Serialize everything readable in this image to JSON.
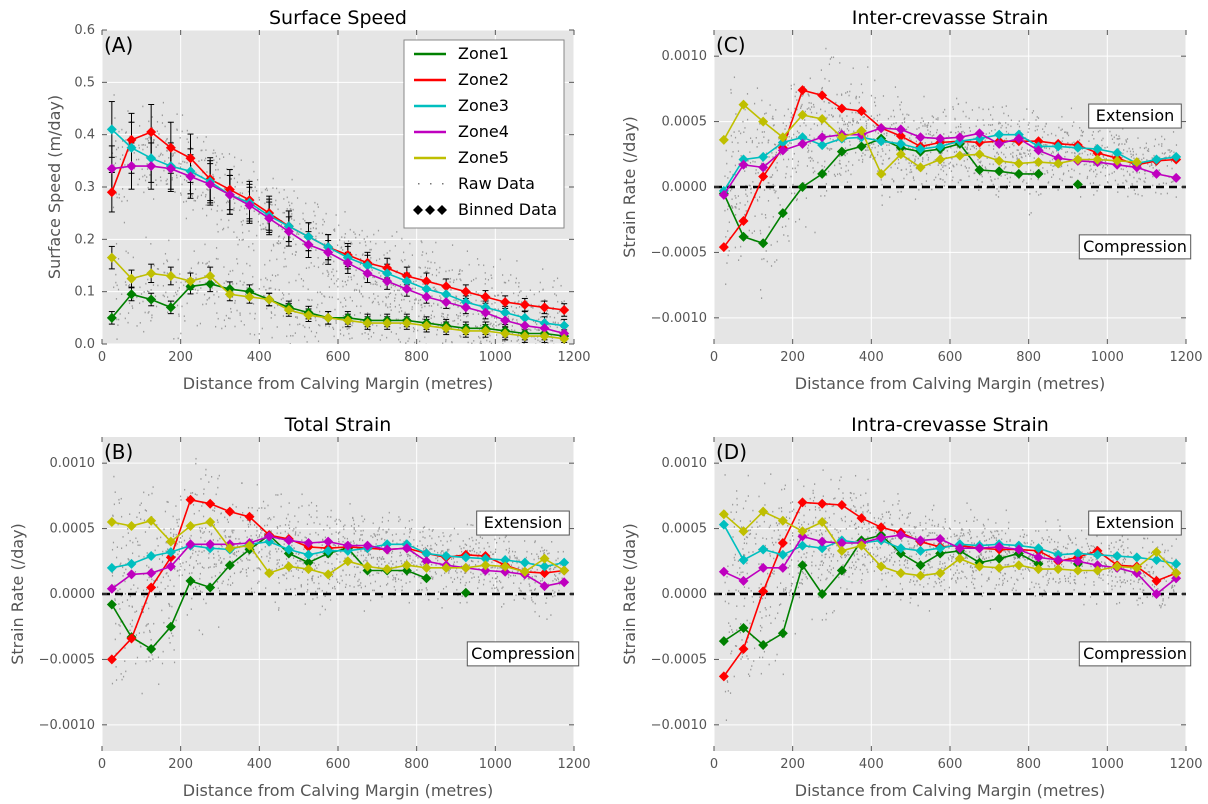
{
  "chart_data": [
    {
      "id": "A",
      "type": "line",
      "title": "Surface Speed",
      "panel_label": "(A)",
      "xlabel": "Distance from Calving Margin (metres)",
      "ylabel": "Surface Speed (m/day)",
      "xlim": [
        0,
        1200
      ],
      "ylim": [
        0.0,
        0.6
      ],
      "xticks": [
        0,
        200,
        400,
        600,
        800,
        1000,
        1200
      ],
      "yticks": [
        0.0,
        0.1,
        0.2,
        0.3,
        0.4,
        0.5,
        0.6
      ],
      "yticklabels": [
        "0.0",
        "0.1",
        "0.2",
        "0.3",
        "0.4",
        "0.5",
        "0.6"
      ],
      "grid": true,
      "legend": {
        "placement": "top-right",
        "entries": [
          "Zone1",
          "Zone2",
          "Zone3",
          "Zone4",
          "Zone5",
          "Raw Data",
          "Binned Data"
        ]
      },
      "x": [
        25,
        75,
        125,
        175,
        225,
        275,
        325,
        375,
        425,
        475,
        525,
        575,
        625,
        675,
        725,
        775,
        825,
        875,
        925,
        975,
        1025,
        1075,
        1125,
        1175
      ],
      "series": [
        {
          "name": "Zone1",
          "color": "#008000",
          "values": [
            0.05,
            0.095,
            0.085,
            0.07,
            0.11,
            0.115,
            0.105,
            0.1,
            0.085,
            0.07,
            0.06,
            0.05,
            0.05,
            0.045,
            0.045,
            0.045,
            0.04,
            0.035,
            0.03,
            0.03,
            0.025,
            0.02,
            0.02,
            0.015
          ]
        },
        {
          "name": "Zone2",
          "color": "#ff0000",
          "values": [
            0.29,
            0.39,
            0.405,
            0.375,
            0.355,
            0.315,
            0.295,
            0.275,
            0.25,
            0.225,
            0.205,
            0.185,
            0.17,
            0.155,
            0.145,
            0.13,
            0.12,
            0.11,
            0.1,
            0.09,
            0.08,
            0.075,
            0.07,
            0.065
          ]
        },
        {
          "name": "Zone3",
          "color": "#00bfbf",
          "values": [
            0.41,
            0.375,
            0.355,
            0.34,
            0.33,
            0.31,
            0.285,
            0.27,
            0.245,
            0.225,
            0.205,
            0.185,
            0.165,
            0.15,
            0.135,
            0.12,
            0.105,
            0.095,
            0.08,
            0.07,
            0.06,
            0.05,
            0.04,
            0.035
          ]
        },
        {
          "name": "Zone4",
          "color": "#bf00bf",
          "values": [
            0.335,
            0.34,
            0.34,
            0.335,
            0.32,
            0.305,
            0.285,
            0.265,
            0.24,
            0.215,
            0.19,
            0.175,
            0.155,
            0.135,
            0.12,
            0.105,
            0.09,
            0.08,
            0.07,
            0.06,
            0.045,
            0.035,
            0.03,
            0.02
          ]
        },
        {
          "name": "Zone5",
          "color": "#bfbf00",
          "values": [
            0.165,
            0.125,
            0.135,
            0.13,
            0.12,
            0.13,
            0.095,
            0.09,
            0.085,
            0.065,
            0.055,
            0.05,
            0.045,
            0.04,
            0.04,
            0.04,
            0.035,
            0.03,
            0.025,
            0.025,
            0.02,
            0.015,
            0.015,
            0.01
          ]
        }
      ]
    },
    {
      "id": "C",
      "type": "line",
      "title": "Inter-crevasse Strain",
      "panel_label": "(C)",
      "xlabel": "Distance from Calving Margin (metres)",
      "ylabel": "Strain Rate (/day)",
      "xlim": [
        0,
        1200
      ],
      "ylim": [
        -0.0012,
        0.0012
      ],
      "xticks": [
        0,
        200,
        400,
        600,
        800,
        1000,
        1200
      ],
      "yticks": [
        -0.001,
        -0.0005,
        0.0,
        0.0005,
        0.001
      ],
      "yticklabels": [
        "−0.0010",
        "−0.0005",
        "0.0000",
        "0.0005",
        "0.0010"
      ],
      "grid": true,
      "annotations": [
        "Extension",
        "Compression"
      ],
      "x": [
        25,
        75,
        125,
        175,
        225,
        275,
        325,
        375,
        425,
        475,
        525,
        575,
        625,
        675,
        725,
        775,
        825,
        875,
        925,
        975,
        1025,
        1075,
        1125,
        1175
      ],
      "series": [
        {
          "name": "Zone1",
          "color": "#008000",
          "values": [
            -5e-05,
            -0.00038,
            -0.00043,
            -0.0002,
            0.0,
            0.0001,
            0.00027,
            0.00031,
            0.00037,
            0.0003,
            0.00027,
            0.00029,
            0.00033,
            0.00013,
            0.00012,
            0.0001,
            0.0001,
            null,
            2e-05,
            null,
            null,
            null,
            null,
            null
          ]
        },
        {
          "name": "Zone2",
          "color": "#ff0000",
          "values": [
            -0.00046,
            -0.00026,
            8e-05,
            0.0003,
            0.00074,
            0.0007,
            0.0006,
            0.00058,
            0.00045,
            0.00039,
            0.00031,
            0.00034,
            0.00035,
            0.00034,
            0.00035,
            0.00035,
            0.00035,
            0.00033,
            0.00032,
            0.00026,
            0.00022,
            0.00017,
            0.0002,
            0.00021
          ]
        },
        {
          "name": "Zone3",
          "color": "#00bfbf",
          "values": [
            -3e-05,
            0.00021,
            0.00023,
            0.00034,
            0.00038,
            0.00032,
            0.00037,
            0.00038,
            0.00035,
            0.00033,
            0.00029,
            0.00031,
            0.00035,
            0.00037,
            0.0004,
            0.0004,
            0.00031,
            0.00031,
            0.0003,
            0.00029,
            0.00026,
            0.00018,
            0.00021,
            0.00023
          ]
        },
        {
          "name": "Zone4",
          "color": "#bf00bf",
          "values": [
            -6e-05,
            0.00017,
            0.00015,
            0.00028,
            0.00033,
            0.00038,
            0.0004,
            0.0004,
            0.00045,
            0.00044,
            0.00038,
            0.00037,
            0.00038,
            0.00041,
            0.00033,
            0.00037,
            0.00028,
            0.00022,
            0.0002,
            0.00019,
            0.00017,
            0.00015,
            0.0001,
            7e-05
          ]
        },
        {
          "name": "Zone5",
          "color": "#bfbf00",
          "values": [
            0.00036,
            0.00063,
            0.0005,
            0.00038,
            0.00055,
            0.00052,
            0.00038,
            0.00043,
            0.0001,
            0.00025,
            0.00015,
            0.00021,
            0.00024,
            0.00025,
            0.0002,
            0.00018,
            0.00019,
            0.00018,
            0.00021,
            0.00021,
            0.0002,
            0.00019,
            null,
            null
          ]
        }
      ]
    },
    {
      "id": "B",
      "type": "line",
      "title": "Total Strain",
      "panel_label": "(B)",
      "xlabel": "Distance from Calving Margin (metres)",
      "ylabel": "Strain Rate (/day)",
      "xlim": [
        0,
        1200
      ],
      "ylim": [
        -0.0012,
        0.0012
      ],
      "xticks": [
        0,
        200,
        400,
        600,
        800,
        1000,
        1200
      ],
      "yticks": [
        -0.001,
        -0.0005,
        0.0,
        0.0005,
        0.001
      ],
      "yticklabels": [
        "−0.0010",
        "−0.0005",
        "0.0000",
        "0.0005",
        "0.0010"
      ],
      "grid": true,
      "annotations": [
        "Extension",
        "Compression"
      ],
      "x": [
        25,
        75,
        125,
        175,
        225,
        275,
        325,
        375,
        425,
        475,
        525,
        575,
        625,
        675,
        725,
        775,
        825,
        875,
        925,
        975,
        1025,
        1075,
        1125,
        1175
      ],
      "series": [
        {
          "name": "Zone1",
          "color": "#008000",
          "values": [
            -8e-05,
            -0.00033,
            -0.00042,
            -0.00025,
            0.0001,
            5e-05,
            0.00022,
            0.00034,
            0.00045,
            0.00031,
            0.00024,
            0.00031,
            0.00035,
            0.00018,
            0.00018,
            0.00018,
            0.00012,
            null,
            1e-05,
            null,
            null,
            null,
            null,
            null
          ]
        },
        {
          "name": "Zone2",
          "color": "#ff0000",
          "values": [
            -0.0005,
            -0.00034,
            5e-05,
            0.00028,
            0.00072,
            0.00069,
            0.00063,
            0.00059,
            0.00045,
            0.00042,
            0.00036,
            0.00035,
            0.00036,
            0.00035,
            0.00034,
            0.00035,
            0.00031,
            0.00028,
            0.0003,
            0.00029,
            0.00022,
            0.00017,
            0.00016,
            0.00018
          ]
        },
        {
          "name": "Zone3",
          "color": "#00bfbf",
          "values": [
            0.0002,
            0.00023,
            0.00029,
            0.00032,
            0.00037,
            0.00035,
            0.00034,
            0.00038,
            0.0004,
            0.00034,
            0.0003,
            0.00033,
            0.00033,
            0.00035,
            0.00038,
            0.00038,
            0.00031,
            0.00029,
            0.00028,
            0.00027,
            0.00026,
            0.00024,
            0.00021,
            0.00024
          ]
        },
        {
          "name": "Zone4",
          "color": "#bf00bf",
          "values": [
            4e-05,
            0.00015,
            0.00016,
            0.00021,
            0.00038,
            0.00038,
            0.00038,
            0.00039,
            0.00044,
            0.00041,
            0.00039,
            0.0004,
            0.00037,
            0.00037,
            0.00034,
            0.00035,
            0.00025,
            0.00022,
            0.0002,
            0.00018,
            0.00017,
            0.00015,
            6e-05,
            9e-05
          ]
        },
        {
          "name": "Zone5",
          "color": "#bfbf00",
          "values": [
            0.00055,
            0.00052,
            0.00056,
            0.0004,
            0.00052,
            0.00055,
            0.00035,
            0.00037,
            0.00016,
            0.00021,
            0.00019,
            0.00015,
            0.00025,
            0.00021,
            0.00019,
            0.00022,
            0.0002,
            0.0002,
            0.0002,
            0.00022,
            0.00021,
            0.00017,
            0.00027,
            0.00018
          ]
        }
      ]
    },
    {
      "id": "D",
      "type": "line",
      "title": "Intra-crevasse Strain",
      "panel_label": "(D)",
      "xlabel": "Distance from Calving Margin (metres)",
      "ylabel": "Strain Rate (/day)",
      "xlim": [
        0,
        1200
      ],
      "ylim": [
        -0.0012,
        0.0012
      ],
      "xticks": [
        0,
        200,
        400,
        600,
        800,
        1000,
        1200
      ],
      "yticks": [
        -0.001,
        -0.0005,
        0.0,
        0.0005,
        0.001
      ],
      "yticklabels": [
        "−0.0010",
        "−0.0005",
        "0.0000",
        "0.0005",
        "0.0010"
      ],
      "grid": true,
      "annotations": [
        "Extension",
        "Compression"
      ],
      "x": [
        25,
        75,
        125,
        175,
        225,
        275,
        325,
        375,
        425,
        475,
        525,
        575,
        625,
        675,
        725,
        775,
        825,
        875,
        925,
        975,
        1025,
        1075,
        1125,
        1175
      ],
      "series": [
        {
          "name": "Zone1",
          "color": "#008000",
          "values": [
            -0.00036,
            -0.00026,
            -0.00039,
            -0.0003,
            0.00022,
            0.0,
            0.00018,
            0.00041,
            0.00045,
            0.00031,
            0.00022,
            0.00031,
            0.00033,
            0.00024,
            0.00027,
            0.00031,
            0.00023,
            null,
            0.00023,
            null,
            null,
            null,
            null,
            null
          ]
        },
        {
          "name": "Zone2",
          "color": "#ff0000",
          "values": [
            -0.00063,
            -0.00042,
            2e-05,
            0.00039,
            0.0007,
            0.00069,
            0.00068,
            0.00058,
            0.00051,
            0.00047,
            0.0004,
            0.00036,
            0.00037,
            0.00035,
            0.00034,
            0.00034,
            0.00033,
            0.00025,
            0.00028,
            0.00033,
            0.00022,
            0.00021,
            0.0001,
            0.00016
          ]
        },
        {
          "name": "Zone3",
          "color": "#00bfbf",
          "values": [
            0.00053,
            0.00026,
            0.00034,
            0.0003,
            0.00037,
            0.00035,
            0.00041,
            0.00039,
            0.00041,
            0.00035,
            0.00033,
            0.00035,
            0.00038,
            0.00037,
            0.00038,
            0.00037,
            0.00035,
            0.0003,
            0.00031,
            0.0003,
            0.00029,
            0.00028,
            0.00026,
            0.00023
          ]
        },
        {
          "name": "Zone4",
          "color": "#bf00bf",
          "values": [
            0.00017,
            0.0001,
            0.0002,
            0.0002,
            0.00044,
            0.0004,
            0.00039,
            0.00039,
            0.00043,
            0.00045,
            0.00041,
            0.00042,
            0.00035,
            0.00035,
            0.00036,
            0.00034,
            0.00028,
            0.00026,
            0.00025,
            0.00022,
            0.0002,
            0.00016,
            0.0,
            0.00012
          ]
        },
        {
          "name": "Zone5",
          "color": "#bfbf00",
          "values": [
            0.00061,
            0.00048,
            0.00063,
            0.00056,
            0.00048,
            0.00055,
            0.00033,
            0.00037,
            0.00021,
            0.00016,
            0.00014,
            0.00016,
            0.00027,
            0.00021,
            0.0002,
            0.00022,
            0.00019,
            0.00019,
            0.00018,
            0.00018,
            0.00021,
            0.0002,
            0.00032,
            0.00016
          ]
        }
      ]
    }
  ],
  "panel_order": [
    "A",
    "C",
    "B",
    "D"
  ]
}
